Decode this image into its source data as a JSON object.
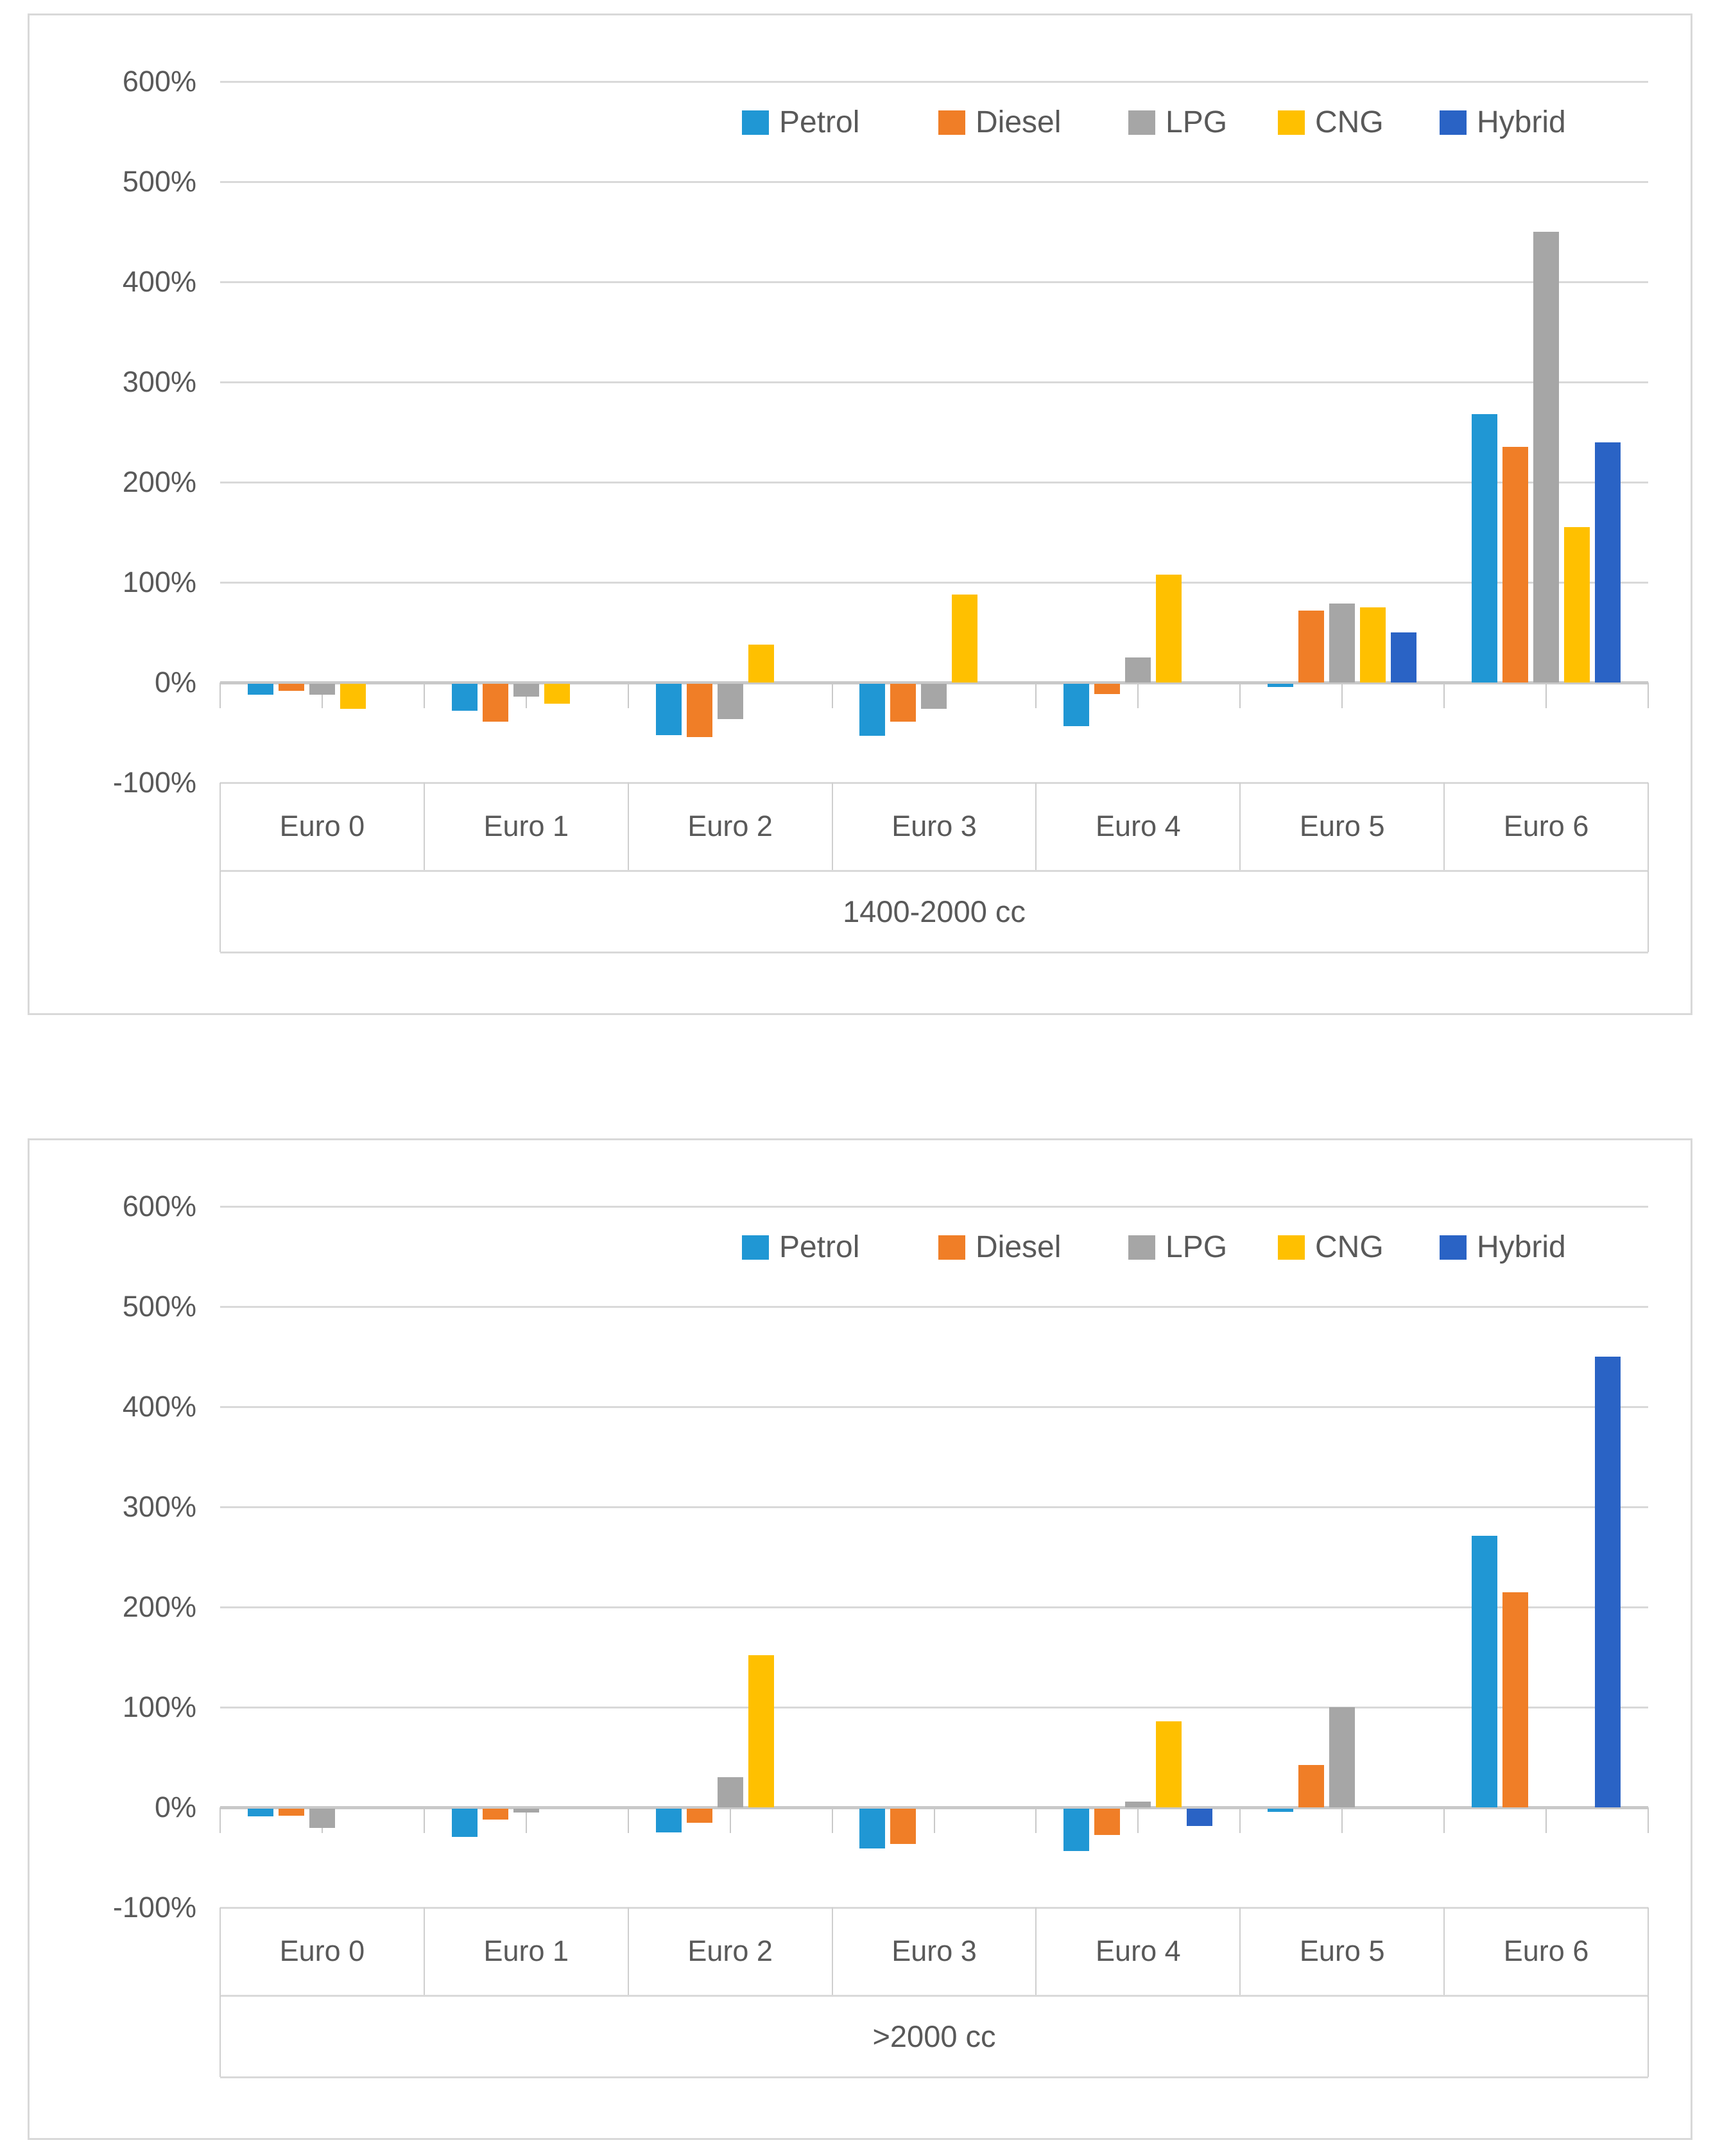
{
  "figure": {
    "background": "#ffffff",
    "text_color": "#595959",
    "grid_color": "#d9d9d9",
    "axis_line_color": "#c9c9c9",
    "frame_color": "#d9d9d9"
  },
  "palette": {
    "petrol": "#2097d4",
    "diesel": "#f07e27",
    "lpg": "#a6a6a6",
    "cng": "#ffc000",
    "hybrid": "#2a63c5"
  },
  "legend": {
    "items": [
      "Petrol",
      "Diesel",
      "LPG",
      "CNG",
      "Hybrid"
    ]
  },
  "chart_data": [
    {
      "type": "bar",
      "title": "",
      "group_label": "1400-2000 cc",
      "xlabel": "",
      "ylabel": "",
      "ylim": [
        -100,
        600
      ],
      "y_tick_step": 100,
      "y_tick_labels": [
        "600%",
        "500%",
        "400%",
        "300%",
        "200%",
        "100%",
        "0%",
        "-100%"
      ],
      "grid": "horizontal",
      "legend_position": "top-right",
      "categories": [
        "Euro 0",
        "Euro 1",
        "Euro 2",
        "Euro 3",
        "Euro 4",
        "Euro 5",
        "Euro 6"
      ],
      "series": [
        {
          "name": "Petrol",
          "color_key": "petrol",
          "values": [
            -11,
            -27,
            -51,
            -52,
            -42,
            -3,
            268
          ]
        },
        {
          "name": "Diesel",
          "color_key": "diesel",
          "values": [
            -7,
            -38,
            -53,
            -38,
            -10,
            72,
            235
          ]
        },
        {
          "name": "LPG",
          "color_key": "lpg",
          "values": [
            -11,
            -13,
            -35,
            -25,
            25,
            79,
            450
          ]
        },
        {
          "name": "CNG",
          "color_key": "cng",
          "values": [
            -25,
            -20,
            38,
            88,
            108,
            75,
            155
          ]
        },
        {
          "name": "Hybrid",
          "color_key": "hybrid",
          "values": [
            null,
            null,
            null,
            null,
            null,
            50,
            240
          ]
        }
      ]
    },
    {
      "type": "bar",
      "title": "",
      "group_label": ">2000 cc",
      "xlabel": "",
      "ylabel": "",
      "ylim": [
        -100,
        600
      ],
      "y_tick_step": 100,
      "y_tick_labels": [
        "600%",
        "500%",
        "400%",
        "300%",
        "200%",
        "100%",
        "0%",
        "-100%"
      ],
      "grid": "horizontal",
      "legend_position": "top-right",
      "categories": [
        "Euro 0",
        "Euro 1",
        "Euro 2",
        "Euro 3",
        "Euro 4",
        "Euro 5",
        "Euro 6"
      ],
      "series": [
        {
          "name": "Petrol",
          "color_key": "petrol",
          "values": [
            -8,
            -28,
            -24,
            -40,
            -42,
            -3,
            271
          ]
        },
        {
          "name": "Diesel",
          "color_key": "diesel",
          "values": [
            -7,
            -11,
            -14,
            -35,
            -26,
            42,
            215
          ]
        },
        {
          "name": "LPG",
          "color_key": "lpg",
          "values": [
            -19,
            -4,
            30,
            null,
            6,
            100,
            null
          ]
        },
        {
          "name": "CNG",
          "color_key": "cng",
          "values": [
            null,
            null,
            152,
            null,
            86,
            null,
            null
          ]
        },
        {
          "name": "Hybrid",
          "color_key": "hybrid",
          "values": [
            null,
            null,
            null,
            null,
            -17,
            null,
            450
          ]
        }
      ]
    }
  ]
}
